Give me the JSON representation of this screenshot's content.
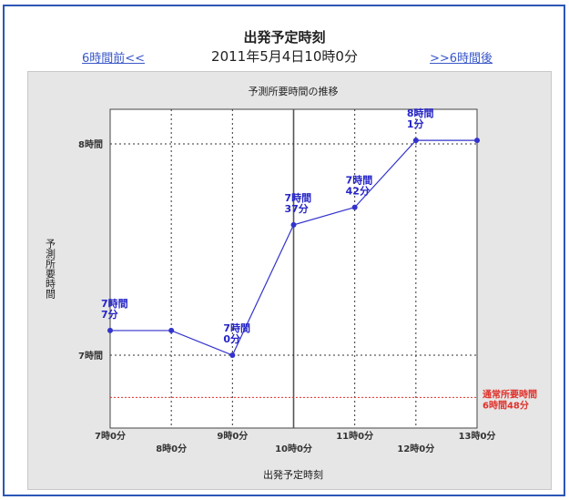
{
  "header": {
    "title": "出発予定時刻",
    "datetime": "2011年5月4日10時0分",
    "prev_link": "6時間前<<",
    "next_link": ">>6時間後"
  },
  "chart_data": {
    "type": "line",
    "title": "予測所要時間の推移",
    "xlabel": "出発予定時刻",
    "ylabel": "予測所要時間",
    "x": [
      "7時0分",
      "8時0分",
      "9時0分",
      "10時0分",
      "11時0分",
      "12時0分",
      "13時0分"
    ],
    "y_ticks": [
      "8時間",
      "7時間"
    ],
    "grid": true,
    "series": [
      {
        "values_minutes": [
          427,
          427,
          420,
          457,
          462,
          481,
          481
        ]
      }
    ],
    "point_labels": [
      {
        "index": 0,
        "lines": [
          "7時間",
          "7分"
        ]
      },
      {
        "index": 2,
        "lines": [
          "7時間",
          "0分"
        ]
      },
      {
        "index": 3,
        "lines": [
          "7時間",
          "37分"
        ]
      },
      {
        "index": 4,
        "lines": [
          "7時間",
          "42分"
        ]
      },
      {
        "index": 5,
        "lines": [
          "8時間",
          "1分"
        ]
      }
    ],
    "reference": {
      "label_lines": [
        "通常所要時間",
        "6時間48分"
      ],
      "value_minutes": 408,
      "color": "#e0302a"
    },
    "series_color": "#3333cc",
    "selected_x": "10時0分"
  }
}
